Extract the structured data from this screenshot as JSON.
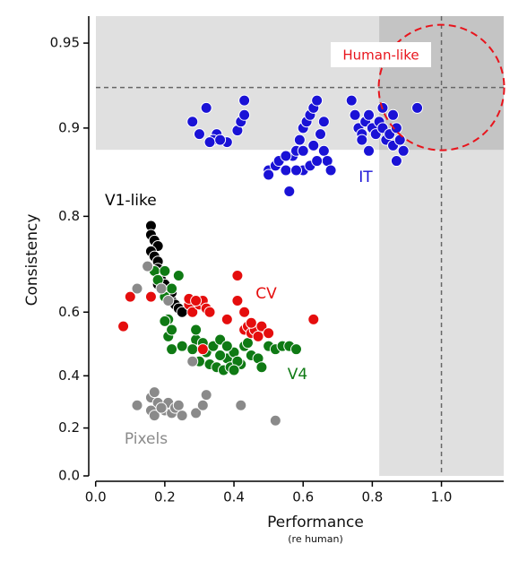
{
  "chart_data": {
    "type": "scatter",
    "xlabel": "Performance",
    "xlabel_note": "(re human)",
    "ylabel": "Consistency",
    "xlim": [
      -0.02,
      1.18
    ],
    "ylim": [
      0,
      0.96
    ],
    "yscale": "arctanh",
    "xticks": [
      {
        "value": 0,
        "label": "0.0"
      },
      0.2,
      0.4,
      0.6,
      0.8,
      {
        "value": 1,
        "label": "1.0"
      }
    ],
    "yticks": [
      {
        "value": 0,
        "label": "0.0"
      },
      0.2,
      0.4,
      0.6,
      0.8,
      0.9,
      0.95
    ],
    "human": {
      "label": "Human-like",
      "x": 1.0,
      "y": 0.928,
      "color": "#e8141c",
      "shade_x_from": 0.82,
      "shade_y_from": 0.881
    },
    "series": [
      {
        "name": "IT",
        "color": "#1a12d6",
        "x": [
          0.28,
          0.32,
          0.35,
          0.3,
          0.34,
          0.33,
          0.38,
          0.36,
          0.41,
          0.42,
          0.43,
          0.43,
          0.5,
          0.5,
          0.52,
          0.53,
          0.55,
          0.56,
          0.57,
          0.58,
          0.59,
          0.6,
          0.61,
          0.62,
          0.63,
          0.64,
          0.65,
          0.66,
          0.67,
          0.6,
          0.62,
          0.64,
          0.58,
          0.55,
          0.6,
          0.63,
          0.68,
          0.66,
          0.74,
          0.75,
          0.76,
          0.77,
          0.78,
          0.79,
          0.8,
          0.81,
          0.82,
          0.83,
          0.84,
          0.85,
          0.86,
          0.87,
          0.88,
          0.89,
          0.87,
          0.93,
          0.79,
          0.77,
          0.83,
          0.86
        ],
        "values": [
          0.905,
          0.915,
          0.895,
          0.895,
          0.89,
          0.888,
          0.888,
          0.89,
          0.898,
          0.905,
          0.91,
          0.92,
          0.86,
          0.855,
          0.865,
          0.87,
          0.86,
          0.835,
          0.875,
          0.88,
          0.89,
          0.9,
          0.905,
          0.91,
          0.915,
          0.92,
          0.895,
          0.88,
          0.87,
          0.86,
          0.865,
          0.87,
          0.86,
          0.875,
          0.88,
          0.885,
          0.86,
          0.905,
          0.92,
          0.91,
          0.9,
          0.895,
          0.905,
          0.91,
          0.9,
          0.895,
          0.905,
          0.9,
          0.89,
          0.895,
          0.885,
          0.9,
          0.89,
          0.88,
          0.87,
          0.915,
          0.88,
          0.89,
          0.915,
          0.91
        ]
      },
      {
        "name": "V1-like",
        "color": "#000000",
        "x": [
          0.16,
          0.16,
          0.17,
          0.18,
          0.16,
          0.17,
          0.18,
          0.17,
          0.18,
          0.19,
          0.18,
          0.19,
          0.2,
          0.21,
          0.22,
          0.23,
          0.24,
          0.25,
          0.2,
          0.22,
          0.18
        ],
        "values": [
          0.785,
          0.77,
          0.76,
          0.75,
          0.74,
          0.73,
          0.72,
          0.7,
          0.69,
          0.68,
          0.67,
          0.66,
          0.65,
          0.64,
          0.63,
          0.62,
          0.61,
          0.6,
          0.67,
          0.65,
          0.705
        ]
      },
      {
        "name": "V4",
        "color": "#0f7a14",
        "x": [
          0.17,
          0.2,
          0.24,
          0.18,
          0.22,
          0.2,
          0.21,
          0.21,
          0.22,
          0.2,
          0.22,
          0.25,
          0.29,
          0.32,
          0.34,
          0.36,
          0.38,
          0.4,
          0.42,
          0.3,
          0.33,
          0.35,
          0.37,
          0.39,
          0.41,
          0.43,
          0.45,
          0.47,
          0.48,
          0.5,
          0.52,
          0.54,
          0.56,
          0.58,
          0.28,
          0.31,
          0.44,
          0.38,
          0.36,
          0.4,
          0.29
        ],
        "values": [
          0.7,
          0.7,
          0.69,
          0.68,
          0.66,
          0.64,
          0.58,
          0.53,
          0.55,
          0.575,
          0.49,
          0.5,
          0.52,
          0.48,
          0.5,
          0.52,
          0.46,
          0.48,
          0.44,
          0.45,
          0.44,
          0.43,
          0.42,
          0.43,
          0.45,
          0.5,
          0.47,
          0.46,
          0.43,
          0.5,
          0.49,
          0.5,
          0.5,
          0.49,
          0.49,
          0.51,
          0.51,
          0.5,
          0.47,
          0.42,
          0.55
        ]
      },
      {
        "name": "CV",
        "color": "#e50d0d",
        "x": [
          0.08,
          0.1,
          0.16,
          0.27,
          0.28,
          0.3,
          0.31,
          0.32,
          0.33,
          0.27,
          0.29,
          0.41,
          0.43,
          0.41,
          0.43,
          0.44,
          0.45,
          0.46,
          0.47,
          0.48,
          0.5,
          0.63,
          0.31,
          0.38,
          0.45
        ],
        "values": [
          0.56,
          0.64,
          0.64,
          0.62,
          0.6,
          0.62,
          0.63,
          0.61,
          0.6,
          0.635,
          0.63,
          0.63,
          0.6,
          0.69,
          0.55,
          0.56,
          0.54,
          0.55,
          0.53,
          0.56,
          0.54,
          0.58,
          0.49,
          0.58,
          0.57
        ]
      },
      {
        "name": "Pixels",
        "color": "#8a8a8a",
        "x": [
          0.12,
          0.16,
          0.17,
          0.18,
          0.16,
          0.17,
          0.2,
          0.21,
          0.22,
          0.23,
          0.24,
          0.25,
          0.29,
          0.32,
          0.42,
          0.52,
          0.31,
          0.19,
          0.12,
          0.19,
          0.21,
          0.28,
          0.15
        ],
        "values": [
          0.29,
          0.32,
          0.34,
          0.3,
          0.27,
          0.25,
          0.27,
          0.3,
          0.26,
          0.28,
          0.29,
          0.25,
          0.26,
          0.33,
          0.29,
          0.23,
          0.29,
          0.28,
          0.66,
          0.66,
          0.63,
          0.45,
          0.71
        ]
      }
    ]
  }
}
